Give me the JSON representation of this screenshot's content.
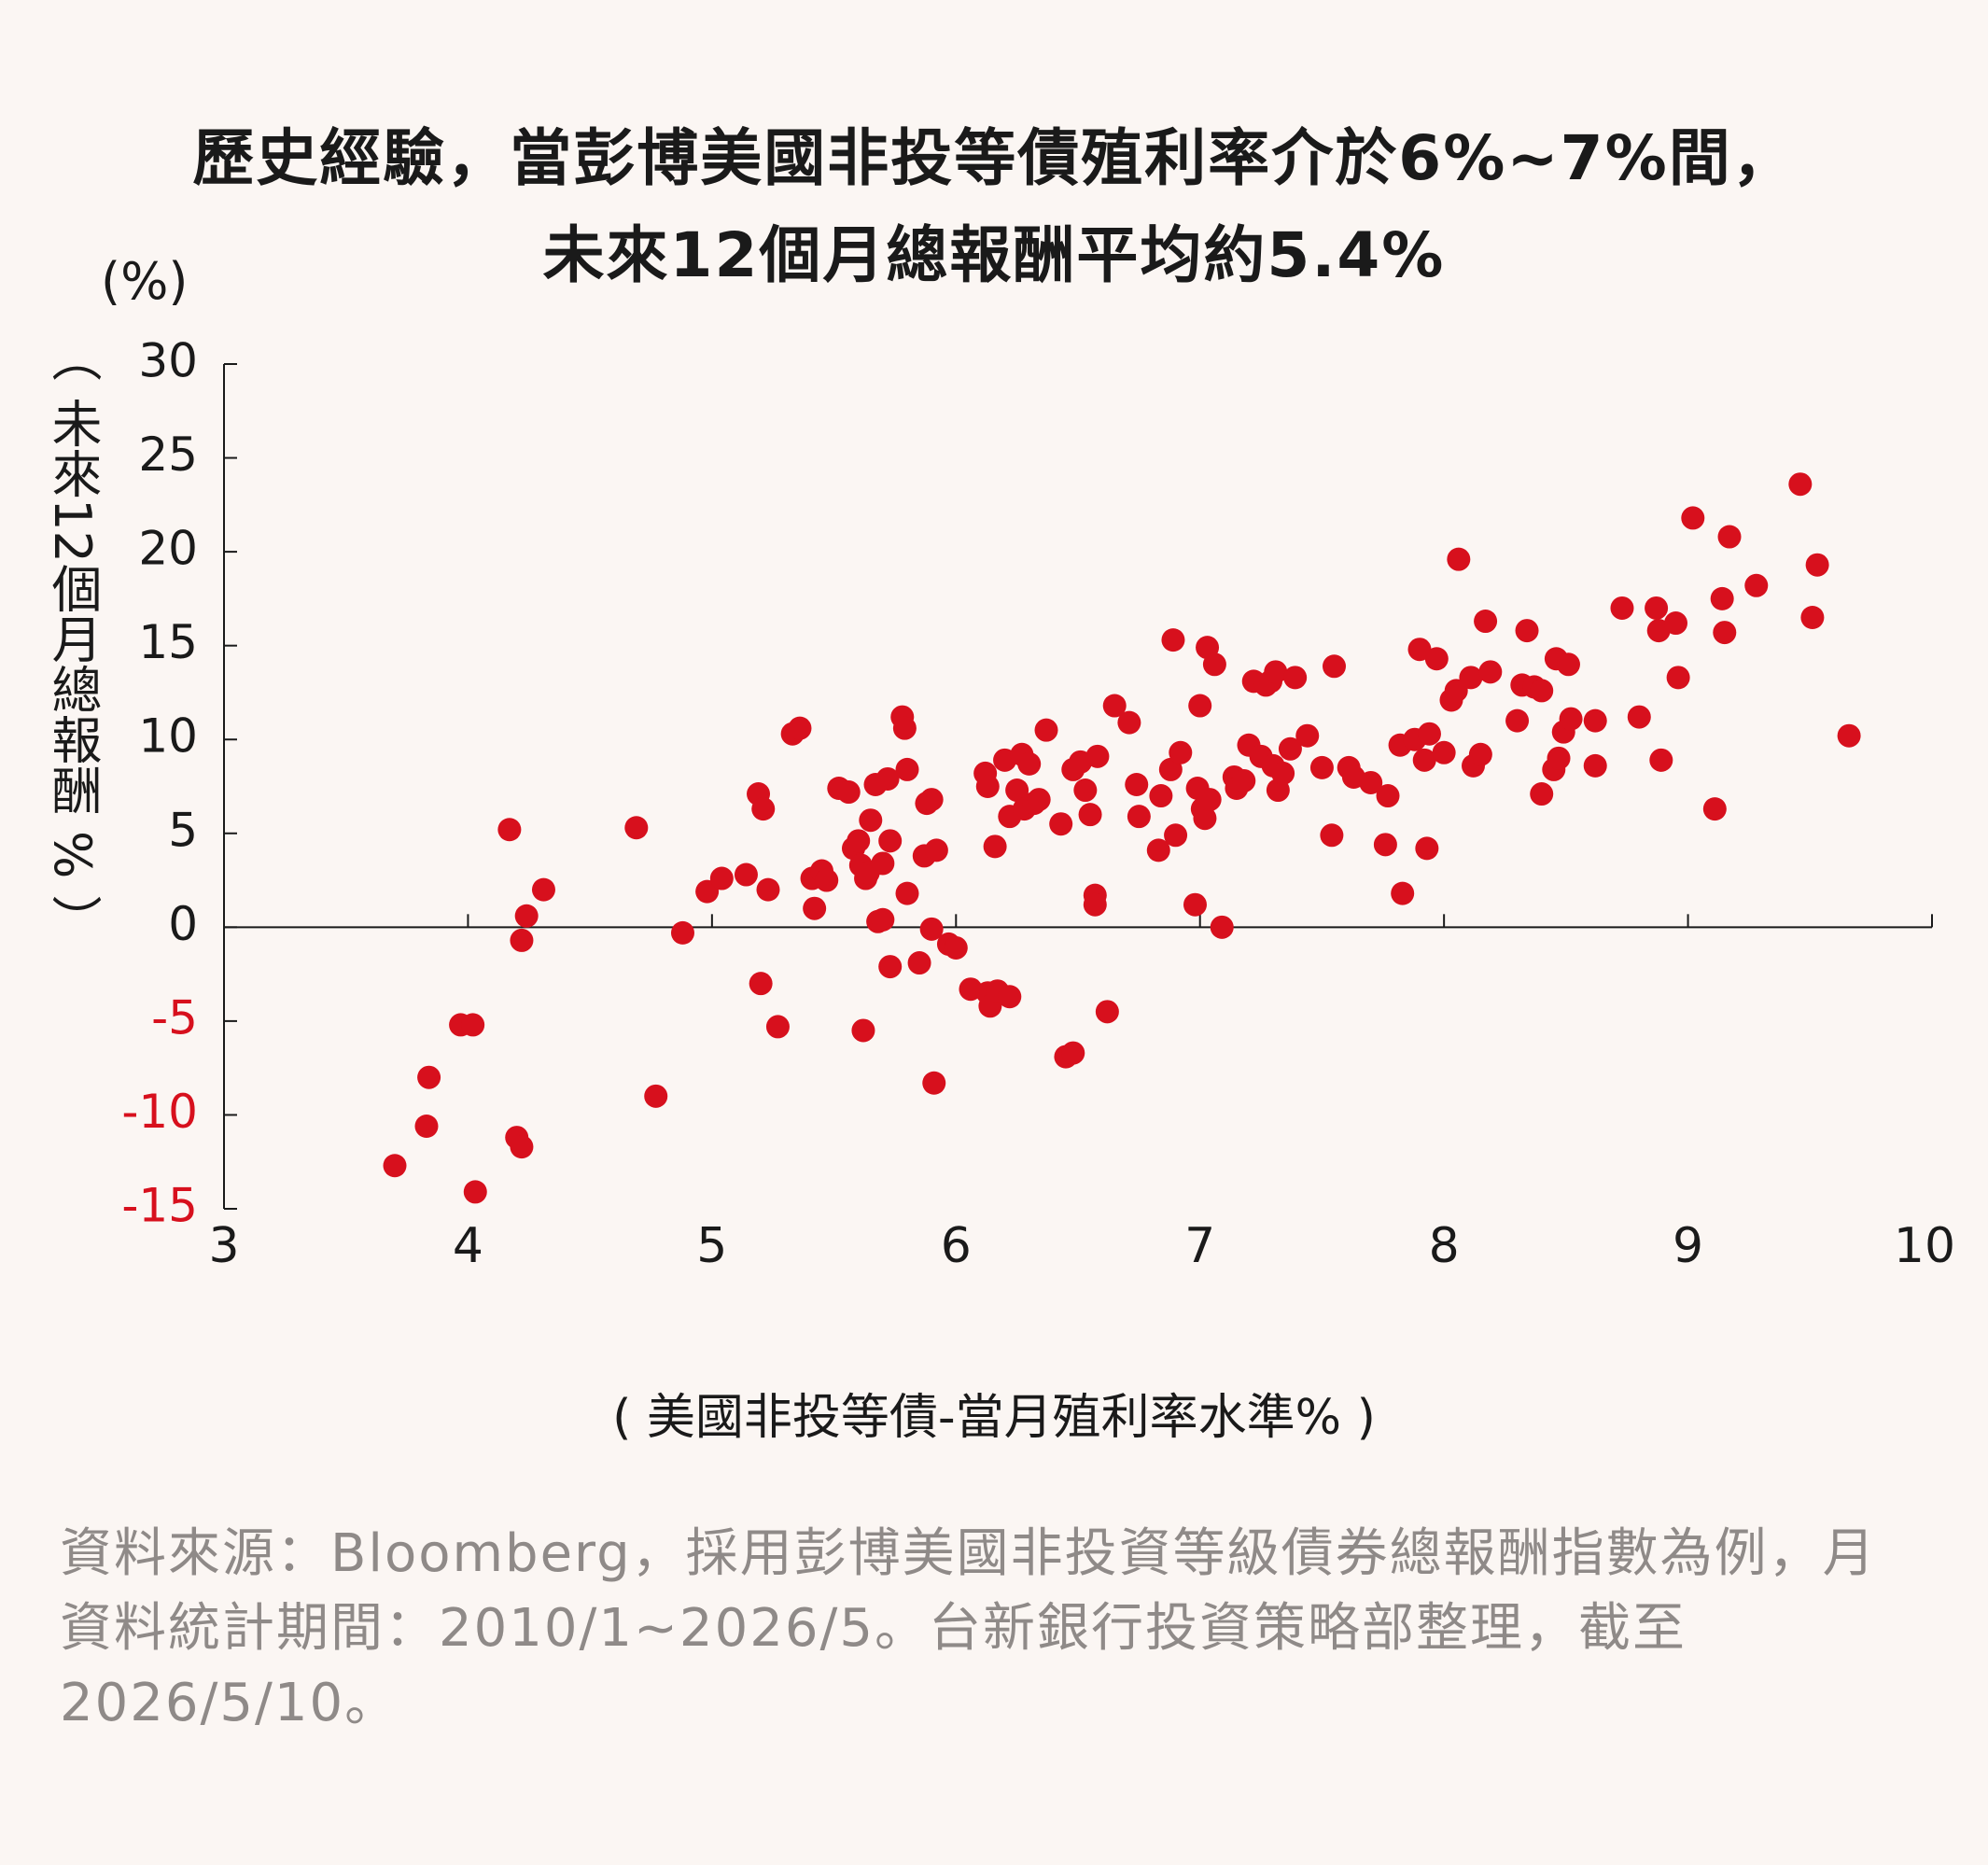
{
  "title_line1": "歷史經驗，當彭博美國非投等債殖利率介於6%~7%間，",
  "title_line2": "未來12個月總報酬平均約5.4%",
  "source_note": "資料來源：Bloomberg，採用彭博美國非投資等級債券總報酬指數為例，月資料統計期間：2010/1~2026/5。台新銀行投資策略部整理，截至2026/5/10。",
  "colors": {
    "point": "#d7101d",
    "negative_tick": "#d7101d",
    "axis": "#1a1a1a"
  },
  "chart_data": {
    "type": "scatter",
    "xlabel": "( 美國非投等債-當月殖利率水準% )",
    "ylabel": "（ 未來12個月總報酬 % ）",
    "y_unit": "(%)",
    "xlim": [
      3,
      10
    ],
    "ylim": [
      -15,
      30
    ],
    "x_ticks": [
      "3",
      "4",
      "5",
      "6",
      "7",
      "8",
      "9",
      "10"
    ],
    "y_ticks": [
      "30",
      "25",
      "20",
      "15",
      "10",
      "5",
      "0",
      "-5",
      "-10",
      "-15"
    ],
    "negative_ticks_colored": true,
    "grid": false,
    "points": [
      [
        3.7,
        -12.7
      ],
      [
        3.83,
        -10.6
      ],
      [
        3.84,
        -8.0
      ],
      [
        3.97,
        -5.2
      ],
      [
        4.02,
        -5.2
      ],
      [
        4.03,
        -14.1
      ],
      [
        4.17,
        5.2
      ],
      [
        4.2,
        -11.2
      ],
      [
        4.22,
        -11.7
      ],
      [
        4.22,
        -0.7
      ],
      [
        4.24,
        0.6
      ],
      [
        4.31,
        2.0
      ],
      [
        4.69,
        5.3
      ],
      [
        4.77,
        -9.0
      ],
      [
        4.88,
        -0.3
      ],
      [
        4.98,
        1.9
      ],
      [
        5.04,
        2.6
      ],
      [
        5.14,
        2.8
      ],
      [
        5.19,
        7.1
      ],
      [
        5.2,
        -3.0
      ],
      [
        5.21,
        6.3
      ],
      [
        5.23,
        2.0
      ],
      [
        5.27,
        -5.3
      ],
      [
        5.33,
        10.3
      ],
      [
        5.36,
        10.6
      ],
      [
        5.41,
        2.6
      ],
      [
        5.42,
        1.0
      ],
      [
        5.45,
        3.0
      ],
      [
        5.47,
        2.5
      ],
      [
        5.52,
        7.4
      ],
      [
        5.56,
        7.2
      ],
      [
        5.58,
        4.2
      ],
      [
        5.6,
        4.6
      ],
      [
        5.61,
        3.3
      ],
      [
        5.62,
        -5.5
      ],
      [
        5.63,
        2.6
      ],
      [
        5.64,
        2.9
      ],
      [
        5.65,
        5.7
      ],
      [
        5.67,
        7.6
      ],
      [
        5.68,
        0.3
      ],
      [
        5.7,
        3.4
      ],
      [
        5.7,
        0.4
      ],
      [
        5.72,
        7.9
      ],
      [
        5.73,
        4.6
      ],
      [
        5.73,
        -2.1
      ],
      [
        5.78,
        11.2
      ],
      [
        5.79,
        10.6
      ],
      [
        5.8,
        8.4
      ],
      [
        5.8,
        1.8
      ],
      [
        5.85,
        -1.9
      ],
      [
        5.87,
        3.8
      ],
      [
        5.88,
        6.6
      ],
      [
        5.9,
        6.8
      ],
      [
        5.9,
        -0.1
      ],
      [
        5.91,
        -8.3
      ],
      [
        5.92,
        4.1
      ],
      [
        5.97,
        -0.9
      ],
      [
        6.0,
        -1.1
      ],
      [
        6.06,
        -3.3
      ],
      [
        6.12,
        8.2
      ],
      [
        6.13,
        7.5
      ],
      [
        6.13,
        -3.5
      ],
      [
        6.14,
        -4.2
      ],
      [
        6.16,
        4.3
      ],
      [
        6.17,
        -3.4
      ],
      [
        6.2,
        8.9
      ],
      [
        6.22,
        5.9
      ],
      [
        6.22,
        -3.7
      ],
      [
        6.25,
        7.3
      ],
      [
        6.27,
        9.2
      ],
      [
        6.28,
        6.3
      ],
      [
        6.3,
        8.7
      ],
      [
        6.32,
        6.6
      ],
      [
        6.34,
        6.8
      ],
      [
        6.37,
        10.5
      ],
      [
        6.43,
        5.5
      ],
      [
        6.45,
        -6.9
      ],
      [
        6.48,
        -6.7
      ],
      [
        6.48,
        8.4
      ],
      [
        6.51,
        8.8
      ],
      [
        6.53,
        7.3
      ],
      [
        6.55,
        6.0
      ],
      [
        6.57,
        1.7
      ],
      [
        6.57,
        1.2
      ],
      [
        6.58,
        9.1
      ],
      [
        6.62,
        -4.5
      ],
      [
        6.65,
        11.8
      ],
      [
        6.71,
        10.9
      ],
      [
        6.74,
        7.6
      ],
      [
        6.75,
        5.9
      ],
      [
        6.83,
        4.1
      ],
      [
        6.84,
        7.0
      ],
      [
        6.88,
        8.4
      ],
      [
        6.89,
        15.3
      ],
      [
        6.9,
        4.9
      ],
      [
        6.92,
        9.3
      ],
      [
        6.98,
        1.2
      ],
      [
        6.99,
        7.4
      ],
      [
        7.0,
        11.8
      ],
      [
        7.01,
        6.3
      ],
      [
        7.02,
        5.8
      ],
      [
        7.03,
        14.9
      ],
      [
        7.04,
        6.8
      ],
      [
        7.06,
        14.0
      ],
      [
        7.09,
        0.0
      ],
      [
        7.14,
        8.0
      ],
      [
        7.15,
        7.4
      ],
      [
        7.18,
        7.8
      ],
      [
        7.2,
        9.7
      ],
      [
        7.22,
        13.1
      ],
      [
        7.25,
        9.1
      ],
      [
        7.27,
        12.9
      ],
      [
        7.29,
        13.1
      ],
      [
        7.3,
        8.6
      ],
      [
        7.31,
        13.6
      ],
      [
        7.32,
        7.3
      ],
      [
        7.34,
        8.2
      ],
      [
        7.37,
        9.5
      ],
      [
        7.39,
        13.3
      ],
      [
        7.44,
        10.2
      ],
      [
        7.5,
        8.5
      ],
      [
        7.54,
        4.9
      ],
      [
        7.55,
        13.9
      ],
      [
        7.61,
        8.5
      ],
      [
        7.63,
        8.0
      ],
      [
        7.7,
        7.7
      ],
      [
        7.76,
        4.4
      ],
      [
        7.77,
        7.0
      ],
      [
        7.82,
        9.7
      ],
      [
        7.83,
        1.8
      ],
      [
        7.88,
        10.0
      ],
      [
        7.9,
        14.8
      ],
      [
        7.92,
        8.9
      ],
      [
        7.93,
        4.2
      ],
      [
        7.94,
        10.3
      ],
      [
        7.97,
        14.3
      ],
      [
        8.0,
        9.3
      ],
      [
        8.03,
        12.1
      ],
      [
        8.05,
        12.6
      ],
      [
        8.06,
        19.6
      ],
      [
        8.11,
        13.3
      ],
      [
        8.12,
        8.6
      ],
      [
        8.15,
        9.2
      ],
      [
        8.17,
        16.3
      ],
      [
        8.19,
        13.6
      ],
      [
        8.3,
        11.0
      ],
      [
        8.32,
        12.9
      ],
      [
        8.34,
        15.8
      ],
      [
        8.37,
        12.8
      ],
      [
        8.4,
        7.1
      ],
      [
        8.4,
        12.6
      ],
      [
        8.45,
        8.4
      ],
      [
        8.46,
        14.3
      ],
      [
        8.47,
        9.0
      ],
      [
        8.49,
        10.4
      ],
      [
        8.51,
        14.0
      ],
      [
        8.52,
        11.1
      ],
      [
        8.62,
        8.6
      ],
      [
        8.62,
        11.0
      ],
      [
        8.73,
        17.0
      ],
      [
        8.8,
        11.2
      ],
      [
        8.87,
        17.0
      ],
      [
        8.88,
        15.8
      ],
      [
        8.89,
        8.9
      ],
      [
        8.95,
        16.2
      ],
      [
        8.96,
        13.3
      ],
      [
        9.02,
        21.8
      ],
      [
        9.11,
        6.3
      ],
      [
        9.14,
        17.5
      ],
      [
        9.15,
        15.7
      ],
      [
        9.17,
        20.8
      ],
      [
        9.28,
        18.2
      ],
      [
        9.46,
        23.6
      ],
      [
        9.51,
        16.5
      ],
      [
        9.53,
        19.3
      ],
      [
        9.66,
        10.2
      ]
    ]
  }
}
